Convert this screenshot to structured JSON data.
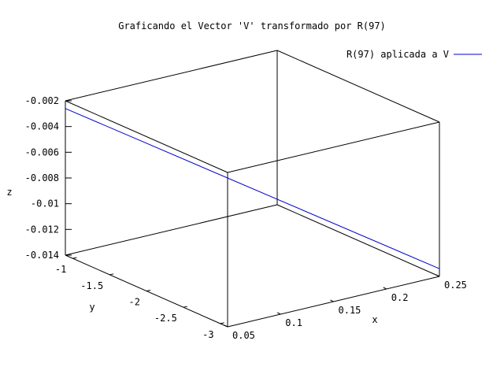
{
  "chart_data": {
    "type": "line",
    "title": "Graficando el Vector 'V' transformado por R(97)",
    "xlabel": "x",
    "ylabel": "y",
    "zlabel": "z",
    "xlim": [
      0.05,
      0.25
    ],
    "ylim": [
      -3.1,
      -0.9
    ],
    "zlim": [
      -0.014,
      -0.002
    ],
    "x_ticks": [
      "0.05",
      "0.1",
      "0.15",
      "0.2",
      "0.25"
    ],
    "y_ticks": [
      "-1",
      "-1.5",
      "-2",
      "-2.5",
      "-3"
    ],
    "z_ticks": [
      "-0.002",
      "-0.004",
      "-0.006",
      "-0.008",
      "-0.01",
      "-0.012",
      "-0.014"
    ],
    "legend_position": "top-right",
    "series": [
      {
        "name": "R(97) aplicada a V",
        "color": "#0000cc",
        "points": [
          {
            "x": 0.05,
            "y": -0.9,
            "z": -0.0026
          },
          {
            "x": 0.25,
            "y": -3.1,
            "z": -0.0134
          }
        ]
      }
    ]
  }
}
